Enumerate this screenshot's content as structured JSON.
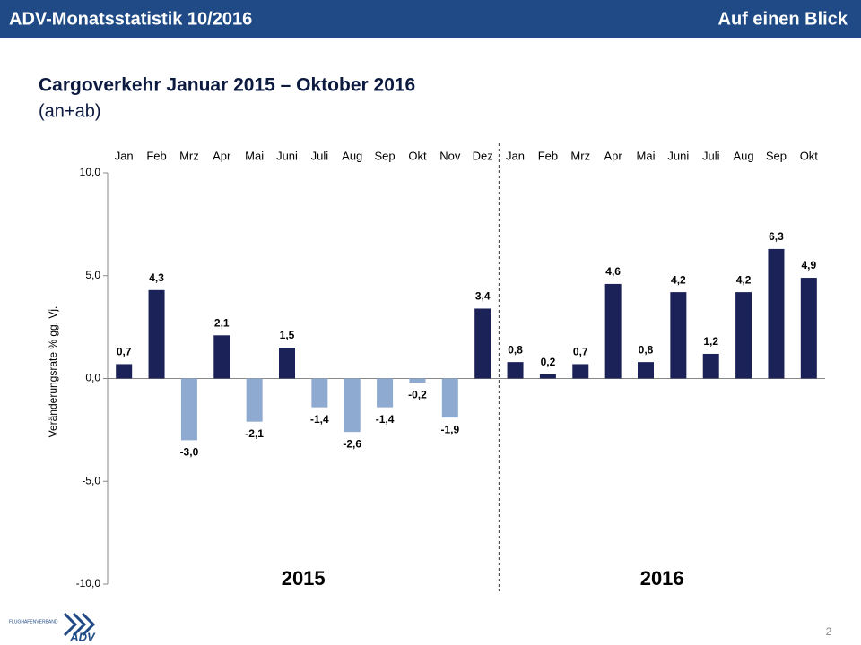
{
  "header": {
    "left": "ADV-Monatsstatistik 10/2016",
    "right": "Auf einen Blick"
  },
  "footer": {
    "page": "2",
    "logo_small": "FLUGHAFENVERBAND",
    "logo": "ADV"
  },
  "chart_data": {
    "type": "bar",
    "title": "Cargoverkehr Januar 2015 – Oktober 2016",
    "subtitle": "(an+ab)",
    "y_label": "Veränderungsrate % gg. Vj.",
    "positive_color": "#1b2258",
    "negative_color": "#8eaad0",
    "ylim": [
      -10,
      10
    ],
    "yticks": [
      {
        "value": -10,
        "label": "-10,0"
      },
      {
        "value": -5,
        "label": "-5,0"
      },
      {
        "value": 0,
        "label": "0,0"
      },
      {
        "value": 5,
        "label": "5,0"
      },
      {
        "value": 10,
        "label": "10,0"
      }
    ],
    "groups": [
      {
        "name": "2015",
        "categories": [
          "Jan",
          "Feb",
          "Mrz",
          "Apr",
          "Mai",
          "Juni",
          "Juli",
          "Aug",
          "Sep",
          "Okt",
          "Nov",
          "Dez"
        ],
        "values": [
          0.7,
          4.3,
          -3.0,
          2.1,
          -2.1,
          1.5,
          -1.4,
          -2.6,
          -1.4,
          -0.2,
          -1.9,
          3.4
        ],
        "value_labels": [
          "0,7",
          "4,3",
          "-3,0",
          "2,1",
          "-2,1",
          "1,5",
          "-1,4",
          "-2,6",
          "-1,4",
          "-0,2",
          "-1,9",
          "3,4"
        ]
      },
      {
        "name": "2016",
        "categories": [
          "Jan",
          "Feb",
          "Mrz",
          "Apr",
          "Mai",
          "Juni",
          "Juli",
          "Aug",
          "Sep",
          "Okt"
        ],
        "values": [
          0.8,
          0.2,
          0.7,
          4.6,
          0.8,
          4.2,
          1.2,
          4.2,
          6.3,
          4.9
        ],
        "value_labels": [
          "0,8",
          "0,2",
          "0,7",
          "4,6",
          "0,8",
          "4,2",
          "1,2",
          "4,2",
          "6,3",
          "4,9"
        ]
      }
    ]
  }
}
